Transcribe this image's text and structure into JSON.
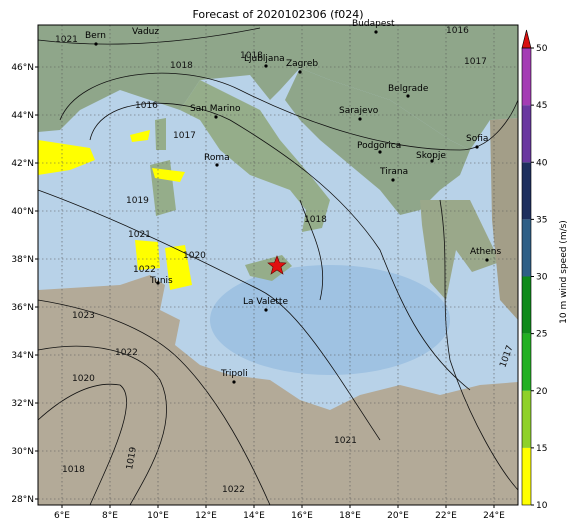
{
  "title": "Forecast of 2020102306 (f024)",
  "lon_ticks": [
    "6°E",
    "8°E",
    "10°E",
    "12°E",
    "14°E",
    "16°E",
    "18°E",
    "20°E",
    "22°E",
    "24°E"
  ],
  "lat_ticks": [
    "28°N",
    "30°N",
    "32°N",
    "34°N",
    "36°N",
    "38°N",
    "40°N",
    "42°N",
    "44°N",
    "46°N"
  ],
  "cities": [
    "Bern",
    "Vaduz",
    "Budapest",
    "Ljubljana",
    "Zagreb",
    "San Marino",
    "Belgrade",
    "Sarajevo",
    "Sofia",
    "Podgorica",
    "Skopje",
    "Roma",
    "Tirana",
    "Athens",
    "Tunis",
    "La Valette",
    "Tripoli"
  ],
  "isobar_labels": [
    "1021",
    "1018",
    "1016",
    "1016",
    "1017",
    "1017",
    "1018",
    "1019",
    "1021",
    "1020",
    "1022",
    "1018",
    "1023",
    "1022",
    "1020",
    "1018",
    "1019",
    "1017",
    "1021",
    "1022"
  ],
  "colorbar": {
    "label": "10 m wind speed (m/s)",
    "ticks": [
      10,
      15,
      20,
      25,
      30,
      35,
      40,
      45,
      50
    ],
    "colors": [
      "#ffff00",
      "#8fd12a",
      "#22b022",
      "#0f8a1a",
      "#2e5f86",
      "#1e2f5e",
      "#6a38a0",
      "#a43cb4"
    ],
    "arrow_color": "#d81010"
  }
}
